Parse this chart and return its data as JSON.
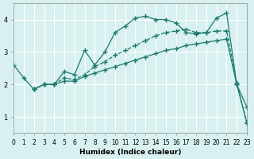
{
  "xlabel": "Humidex (Indice chaleur)",
  "bg_color": "#d8f0f0",
  "line_color": "#1a7a6e",
  "grid_color": "#ffffff",
  "xlim": [
    0,
    23
  ],
  "ylim": [
    0.5,
    4.5
  ],
  "line1_x": [
    0,
    1,
    2,
    3,
    4,
    5,
    6,
    7,
    8,
    9,
    10,
    11,
    12,
    13,
    14,
    15,
    16,
    17,
    18,
    19,
    20,
    21,
    22,
    23
  ],
  "line1_y": [
    2.6,
    2.2,
    1.85,
    2.0,
    2.0,
    2.4,
    2.3,
    3.05,
    2.6,
    3.0,
    3.6,
    3.8,
    4.05,
    4.1,
    4.0,
    4.0,
    3.9,
    3.6,
    3.55,
    3.6,
    4.05,
    4.2,
    2.0,
    1.3
  ],
  "line2_x": [
    2,
    3,
    4,
    5,
    6,
    7,
    8,
    9,
    10,
    11,
    12,
    13,
    14,
    15,
    16,
    17,
    18,
    19,
    20,
    21,
    22,
    23
  ],
  "line2_y": [
    1.85,
    2.0,
    2.0,
    2.2,
    2.15,
    2.3,
    2.55,
    2.7,
    2.9,
    3.05,
    3.2,
    3.35,
    3.5,
    3.6,
    3.65,
    3.7,
    3.6,
    3.6,
    3.65,
    3.65,
    2.05,
    0.8
  ],
  "line3_x": [
    2,
    3,
    4,
    5,
    6,
    7,
    8,
    9,
    10,
    11,
    12,
    13,
    14,
    15,
    16,
    17,
    18,
    19,
    20,
    21,
    22,
    23
  ],
  "line3_y": [
    1.85,
    2.0,
    2.0,
    2.1,
    2.1,
    2.25,
    2.35,
    2.45,
    2.55,
    2.65,
    2.75,
    2.85,
    2.95,
    3.05,
    3.1,
    3.2,
    3.25,
    3.3,
    3.35,
    3.4,
    2.0,
    0.82
  ]
}
